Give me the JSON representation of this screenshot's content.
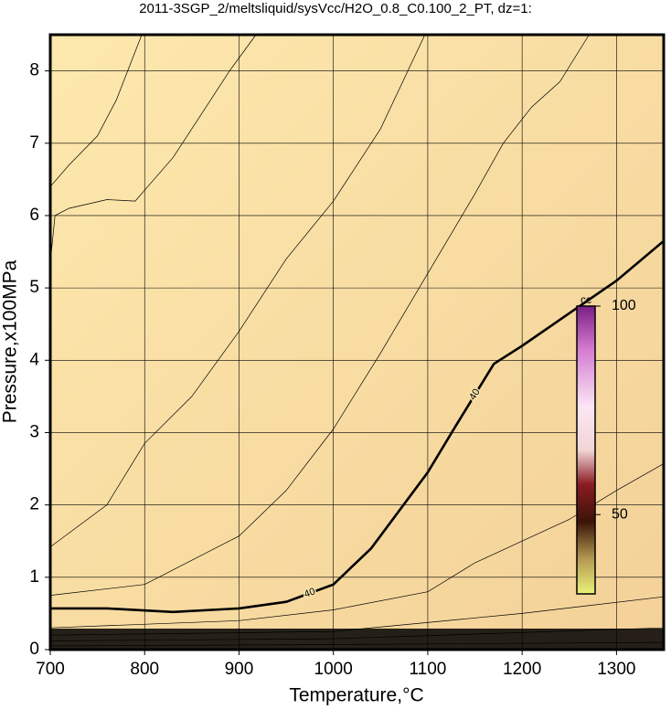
{
  "chart_data": {
    "type": "contour",
    "title": "2011-3SGP_2/meltsliquid/sysVcc/H2O_0.8_C0.100_2_PT, dz=1:",
    "x_label": "Temperature,°C",
    "y_label": "Pressure,x100MPa",
    "xlim": [
      700,
      1350
    ],
    "ylim": [
      0,
      8.5
    ],
    "xticks": [
      700,
      800,
      900,
      1000,
      1100,
      1200,
      1300
    ],
    "yticks": [
      0,
      1,
      2,
      3,
      4,
      5,
      6,
      7,
      8
    ],
    "grid": true,
    "series": [
      {
        "label": "40",
        "bold": true,
        "color": "#000000",
        "x": [
          700,
          760,
          830,
          900,
          950,
          1000,
          1040,
          1080,
          1100,
          1130,
          1170,
          1200,
          1250,
          1300,
          1350
        ],
        "values": [
          0.57,
          0.57,
          0.52,
          0.57,
          0.66,
          0.9,
          1.4,
          2.1,
          2.45,
          3.1,
          3.95,
          4.2,
          4.65,
          5.1,
          5.65
        ]
      },
      {
        "color": "#000000",
        "x": [
          700,
          720,
          750,
          770,
          797
        ],
        "values": [
          6.4,
          6.7,
          7.1,
          7.6,
          8.5
        ]
      },
      {
        "color": "#000000",
        "x": [
          700,
          705,
          720,
          760,
          790,
          800,
          830,
          860,
          890,
          918
        ],
        "values": [
          5.35,
          6.0,
          6.1,
          6.22,
          6.2,
          6.35,
          6.8,
          7.4,
          8.0,
          8.5
        ]
      },
      {
        "color": "#000000",
        "x": [
          700,
          760,
          800,
          850,
          900,
          950,
          1000,
          1050,
          1097
        ],
        "values": [
          1.42,
          2.0,
          2.85,
          3.5,
          4.4,
          5.4,
          6.2,
          7.2,
          8.5
        ]
      },
      {
        "color": "#000000",
        "x": [
          700,
          800,
          900,
          950,
          1000,
          1050,
          1100,
          1150,
          1180,
          1210,
          1240,
          1271
        ],
        "values": [
          0.75,
          0.9,
          1.57,
          2.2,
          3.05,
          4.1,
          5.2,
          6.3,
          7.0,
          7.5,
          7.85,
          8.5
        ]
      },
      {
        "color": "#000000",
        "x": [
          700,
          900,
          1000,
          1100,
          1150,
          1200,
          1250,
          1300,
          1350
        ],
        "values": [
          0.3,
          0.4,
          0.55,
          0.8,
          1.2,
          1.5,
          1.8,
          2.2,
          2.57
        ]
      },
      {
        "color": "#000000",
        "x": [
          700,
          1000,
          1200,
          1350
        ],
        "values": [
          0.2,
          0.25,
          0.5,
          0.73
        ]
      },
      {
        "color": "#000000",
        "x": [
          700,
          1000,
          1350
        ],
        "values": [
          0.12,
          0.15,
          0.3
        ]
      },
      {
        "color": "#000000",
        "x": [
          700,
          1000,
          1350
        ],
        "values": [
          0.05,
          0.07,
          0.1
        ]
      }
    ],
    "colorbar": {
      "label": "cc",
      "clim": [
        31,
        100
      ],
      "ticks": [
        50,
        100
      ]
    }
  }
}
